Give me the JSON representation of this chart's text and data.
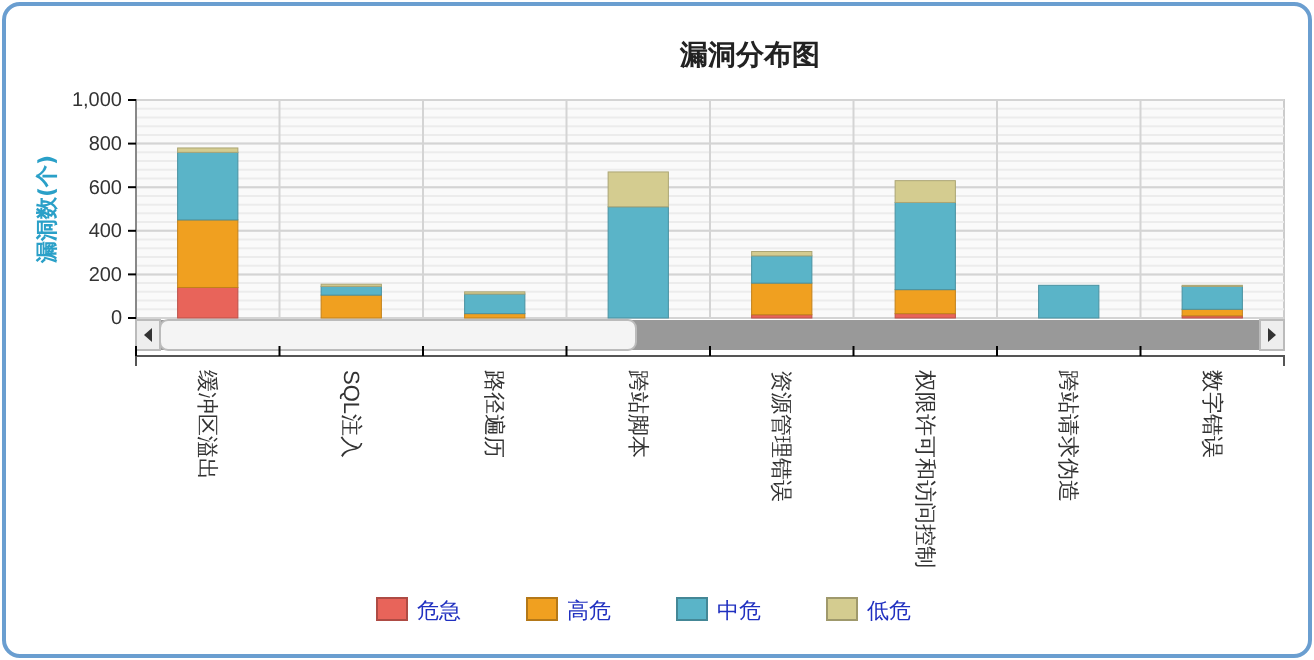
{
  "chart_data": {
    "type": "bar",
    "title": "漏洞分布图",
    "ylabel": "漏洞数(个)",
    "stacked": true,
    "grid": true,
    "legend": "bottom",
    "categories": [
      "缓冲区溢出",
      "SQL注入",
      "路径遍历",
      "跨站脚本",
      "资源管理错误",
      "权限许可和访问控制",
      "跨站请求伪造",
      "数字错误"
    ],
    "ylim": [
      0,
      1000
    ],
    "yticks": [
      0,
      200,
      400,
      600,
      800,
      {
        "value": 1000,
        "label": "1,000"
      }
    ],
    "series": [
      {
        "name": "危急",
        "color": "#e8645a",
        "values": [
          140,
          0,
          0,
          0,
          15,
          20,
          0,
          10
        ]
      },
      {
        "name": "高危",
        "color": "#f0a020",
        "values": [
          310,
          105,
          20,
          0,
          145,
          110,
          0,
          30
        ]
      },
      {
        "name": "中危",
        "color": "#5ab4c8",
        "values": [
          310,
          40,
          90,
          510,
          125,
          400,
          150,
          105
        ]
      },
      {
        "name": "低危",
        "color": "#d4cc90",
        "values": [
          20,
          10,
          10,
          160,
          20,
          100,
          0,
          5
        ]
      }
    ]
  }
}
